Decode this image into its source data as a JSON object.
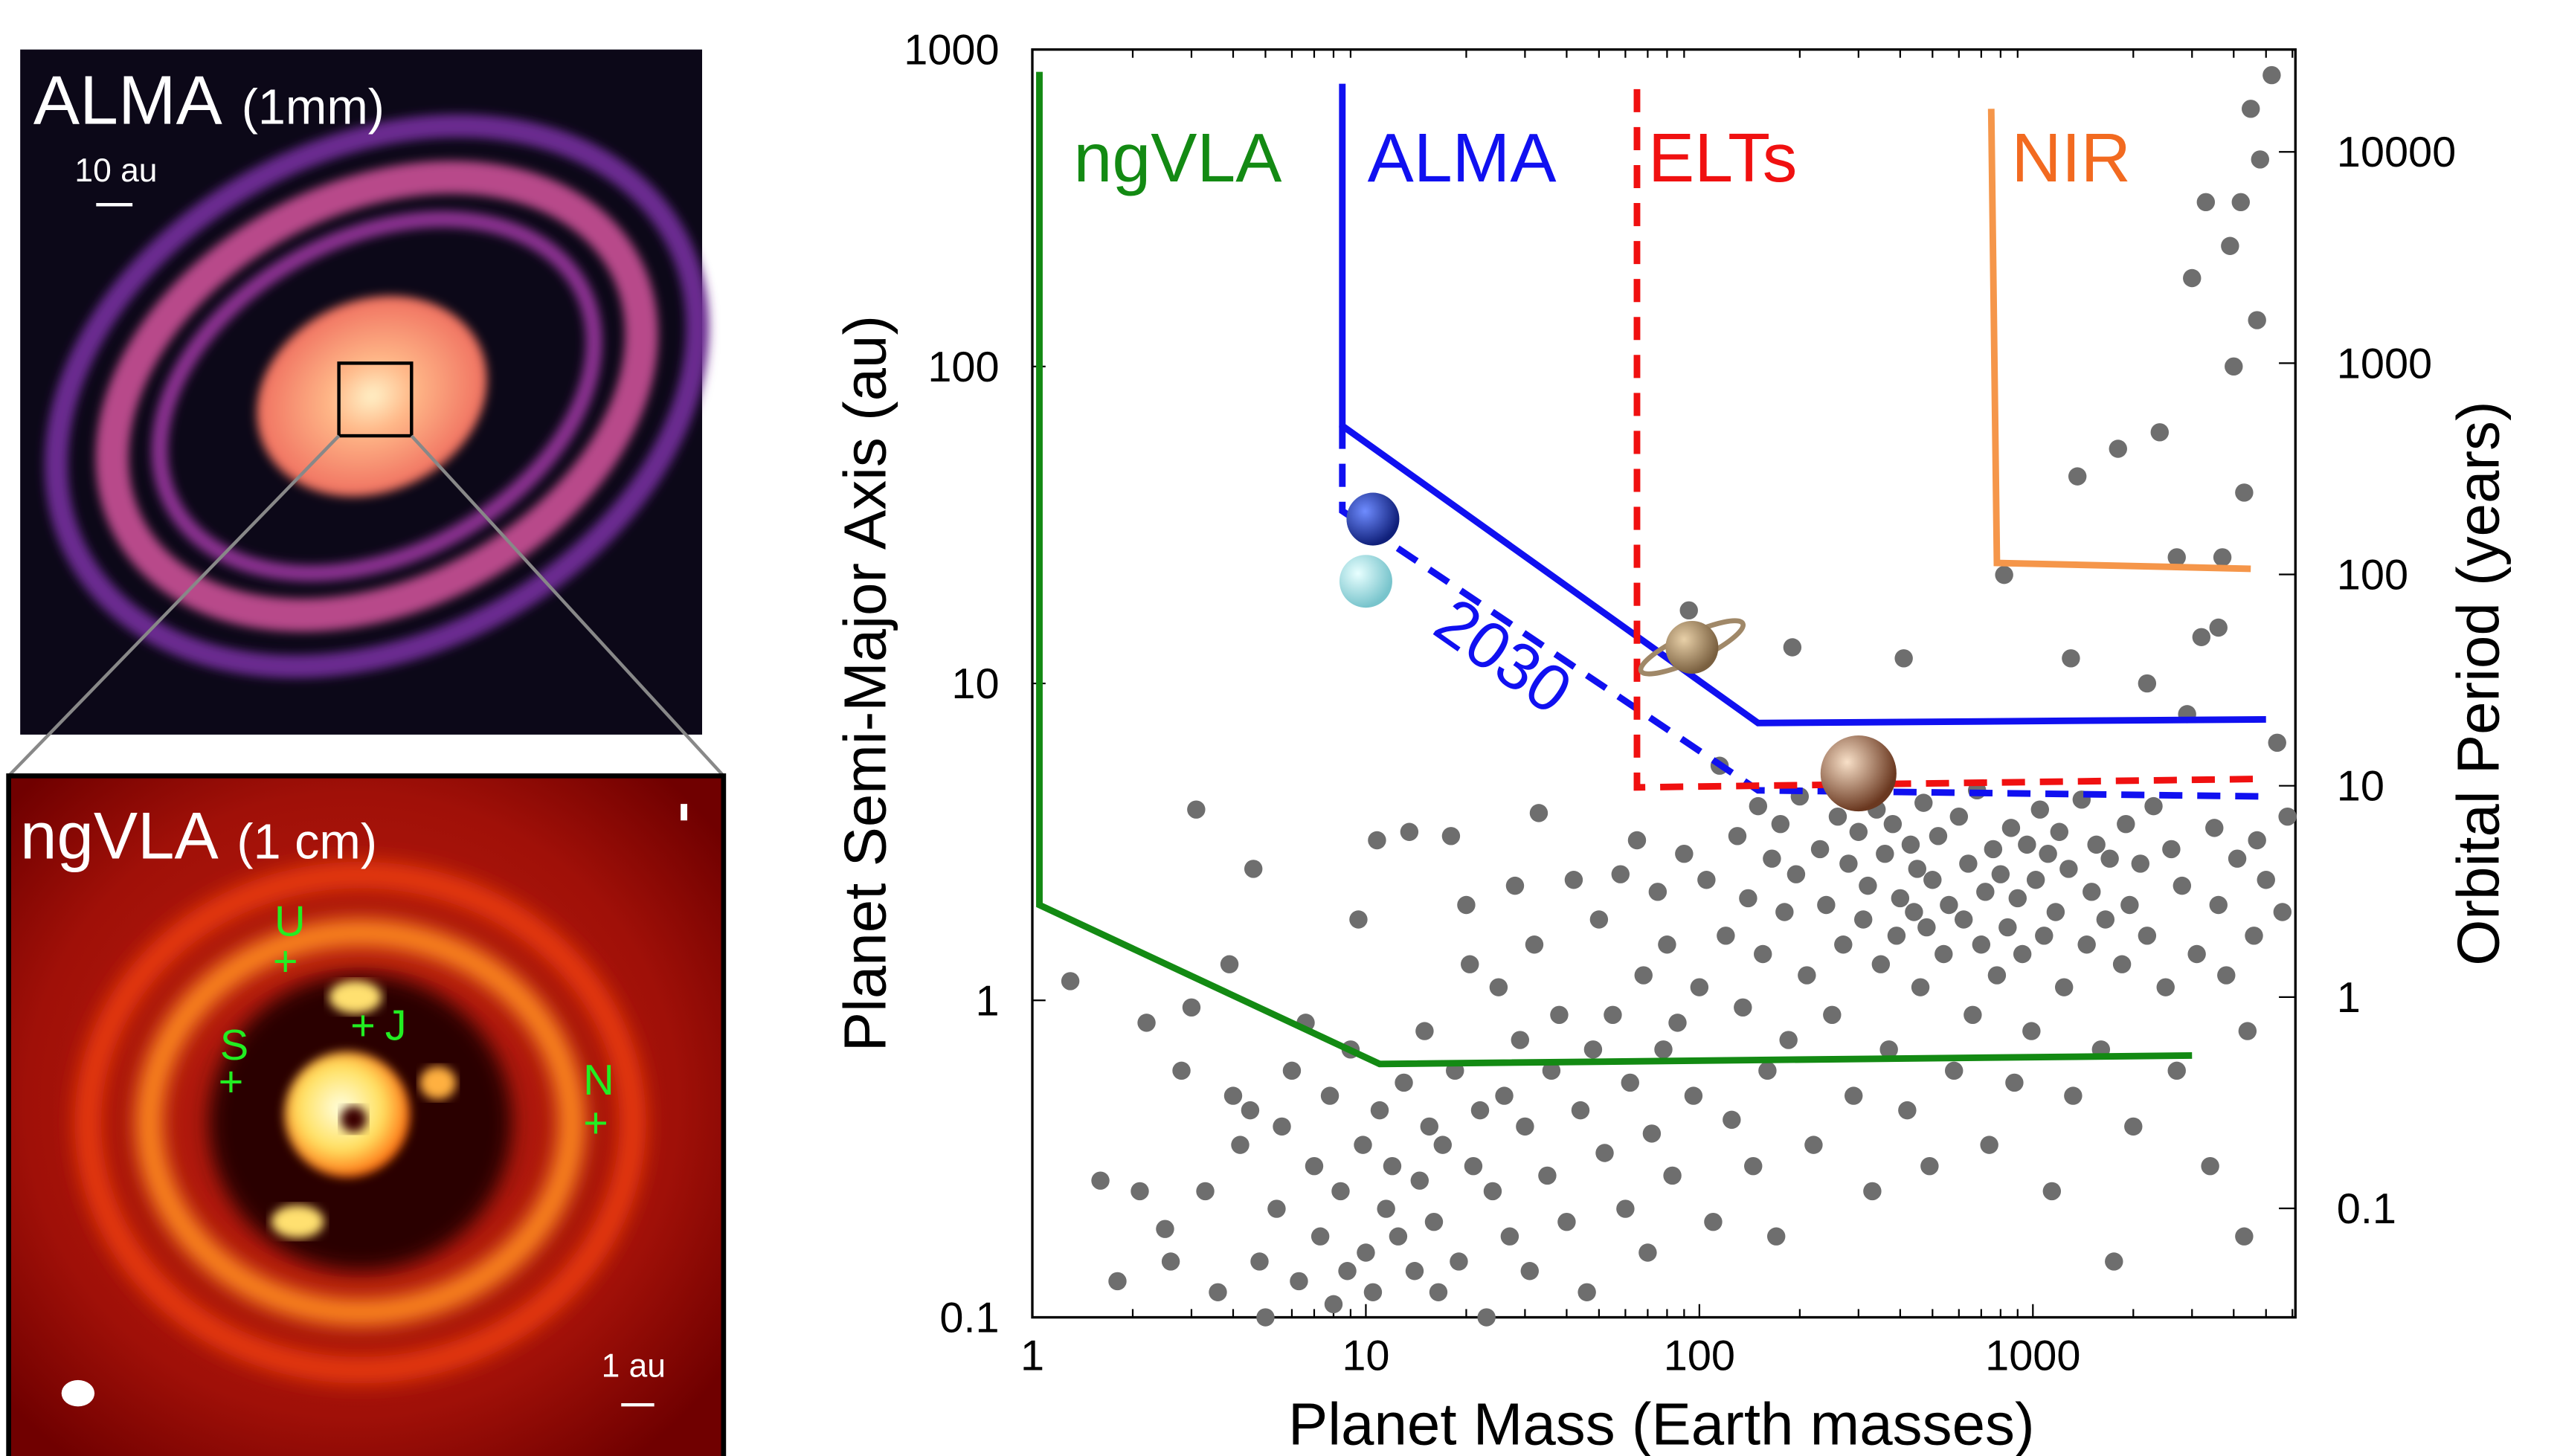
{
  "panels": {
    "alma": {
      "title": "ALMA",
      "subtitle": "(1mm)",
      "scale_label": "10 au"
    },
    "ngvla": {
      "title": "ngVLA",
      "subtitle": "(1 cm)",
      "scale_label": "1 au",
      "planet_markers": [
        {
          "label": "U"
        },
        {
          "label": "S"
        },
        {
          "label": "J"
        },
        {
          "label": "N"
        }
      ]
    }
  },
  "chart_data": {
    "type": "scatter",
    "xlabel": "Planet Mass (Earth masses)",
    "ylabel": "Planet Semi-Major Axis (au)",
    "y2label": "Orbital Period (years)",
    "xscale": "log",
    "yscale": "log",
    "xlim": [
      1,
      6000
    ],
    "ylim": [
      0.1,
      1000
    ],
    "xticks": [
      "1",
      "10",
      "100",
      "1000"
    ],
    "xtick_values": [
      1,
      10,
      100,
      1000
    ],
    "yticks": [
      "0.1",
      "1",
      "10",
      "100",
      "1000"
    ],
    "ytick_values": [
      0.1,
      1,
      10,
      100,
      1000
    ],
    "y2ticks": [
      "0.1",
      "1",
      "10",
      "100",
      "1000",
      "10000"
    ],
    "y2tick_values": [
      0.1,
      1,
      10,
      100,
      1000,
      10000
    ],
    "colors": {
      "ngVLA": "#138a13",
      "ALMA": "#1010f0",
      "ELTs": "#f01010",
      "NIR": "#f5964a",
      "points": "#6e6e6e"
    },
    "limits": [
      {
        "name": "ngVLA",
        "style": "solid",
        "points": [
          [
            1.05,
            850
          ],
          [
            1.05,
            2
          ],
          [
            11,
            0.63
          ],
          [
            3000,
            0.67
          ]
        ]
      },
      {
        "name": "ALMA",
        "style": "solid",
        "points": [
          [
            8.5,
            780
          ],
          [
            8.5,
            65
          ],
          [
            150,
            7.5
          ],
          [
            5000,
            7.7
          ]
        ]
      },
      {
        "name": "ALMA 2030",
        "label": "2030",
        "style": "dashed",
        "points": [
          [
            8.5,
            65
          ],
          [
            8.5,
            35
          ],
          [
            150,
            4.6
          ],
          [
            5000,
            4.4
          ]
        ]
      },
      {
        "name": "ELTs",
        "style": "dashed",
        "points": [
          [
            65,
            750
          ],
          [
            65,
            4.7
          ],
          [
            5000,
            5
          ]
        ]
      },
      {
        "name": "NIR",
        "style": "solid",
        "points": [
          [
            750,
            650
          ],
          [
            780,
            24
          ],
          [
            4500,
            23
          ]
        ]
      }
    ],
    "solar_system": [
      {
        "name": "Neptune",
        "mass": 10.5,
        "a": 33,
        "color": "#2a4fd8"
      },
      {
        "name": "Uranus",
        "mass": 10,
        "a": 21,
        "color": "#a8e4ea"
      },
      {
        "name": "Saturn",
        "mass": 95,
        "a": 13,
        "color": "#c8a878"
      },
      {
        "name": "Jupiter",
        "mass": 300,
        "a": 5.2,
        "color": "#c88a60"
      }
    ],
    "exoplanets": [
      [
        1.3,
        1.15
      ],
      [
        1.6,
        0.27
      ],
      [
        1.8,
        0.13
      ],
      [
        2.1,
        0.25
      ],
      [
        2.2,
        0.85
      ],
      [
        2.5,
        0.19
      ],
      [
        2.6,
        0.15
      ],
      [
        2.8,
        0.6
      ],
      [
        3,
        0.95
      ],
      [
        3.1,
        4
      ],
      [
        3.3,
        0.25
      ],
      [
        3.6,
        0.12
      ],
      [
        3.9,
        1.3
      ],
      [
        4,
        0.5
      ],
      [
        4.2,
        0.35
      ],
      [
        4.5,
        0.45
      ],
      [
        4.6,
        2.6
      ],
      [
        4.8,
        0.15
      ],
      [
        5,
        0.1
      ],
      [
        5.4,
        0.22
      ],
      [
        5.6,
        0.4
      ],
      [
        6,
        0.6
      ],
      [
        6.3,
        0.13
      ],
      [
        6.6,
        0.85
      ],
      [
        7,
        0.3
      ],
      [
        7.3,
        0.18
      ],
      [
        7.8,
        0.5
      ],
      [
        8,
        0.11
      ],
      [
        8.4,
        0.25
      ],
      [
        8.8,
        0.14
      ],
      [
        9,
        0.7
      ],
      [
        9.5,
        1.8
      ],
      [
        9.8,
        0.35
      ],
      [
        10,
        0.16
      ],
      [
        10.5,
        0.12
      ],
      [
        10.8,
        3.2
      ],
      [
        11,
        0.45
      ],
      [
        11.5,
        0.22
      ],
      [
        12,
        0.3
      ],
      [
        12.5,
        0.18
      ],
      [
        13,
        0.55
      ],
      [
        13.5,
        3.4
      ],
      [
        14,
        0.14
      ],
      [
        14.5,
        0.27
      ],
      [
        15,
        0.8
      ],
      [
        15.5,
        0.4
      ],
      [
        16,
        0.2
      ],
      [
        16.5,
        0.12
      ],
      [
        17,
        0.35
      ],
      [
        18,
        3.3
      ],
      [
        18.5,
        0.6
      ],
      [
        19,
        0.15
      ],
      [
        20,
        2
      ],
      [
        20.5,
        1.3
      ],
      [
        21,
        0.3
      ],
      [
        22,
        0.45
      ],
      [
        23,
        0.1
      ],
      [
        24,
        0.25
      ],
      [
        25,
        1.1
      ],
      [
        26,
        0.5
      ],
      [
        27,
        0.18
      ],
      [
        28,
        2.3
      ],
      [
        29,
        0.75
      ],
      [
        30,
        0.4
      ],
      [
        31,
        0.14
      ],
      [
        32,
        1.5
      ],
      [
        33,
        3.9
      ],
      [
        35,
        0.28
      ],
      [
        36,
        0.6
      ],
      [
        38,
        0.9
      ],
      [
        40,
        0.2
      ],
      [
        42,
        2.4
      ],
      [
        44,
        0.45
      ],
      [
        46,
        0.12
      ],
      [
        48,
        0.7
      ],
      [
        50,
        1.8
      ],
      [
        52,
        0.33
      ],
      [
        55,
        0.9
      ],
      [
        58,
        2.5
      ],
      [
        60,
        0.22
      ],
      [
        62,
        0.55
      ],
      [
        65,
        3.2
      ],
      [
        68,
        1.2
      ],
      [
        70,
        0.16
      ],
      [
        72,
        0.38
      ],
      [
        75,
        2.2
      ],
      [
        78,
        0.7
      ],
      [
        80,
        1.5
      ],
      [
        83,
        0.28
      ],
      [
        86,
        0.85
      ],
      [
        90,
        2.9
      ],
      [
        93,
        17
      ],
      [
        96,
        0.5
      ],
      [
        100,
        1.1
      ],
      [
        105,
        2.4
      ],
      [
        110,
        0.2
      ],
      [
        115,
        5.5
      ],
      [
        120,
        1.6
      ],
      [
        125,
        0.42
      ],
      [
        130,
        3.3
      ],
      [
        135,
        0.95
      ],
      [
        140,
        2.1
      ],
      [
        145,
        0.3
      ],
      [
        150,
        4.1
      ],
      [
        155,
        1.4
      ],
      [
        160,
        0.6
      ],
      [
        165,
        2.8
      ],
      [
        170,
        0.18
      ],
      [
        175,
        3.6
      ],
      [
        180,
        1.9
      ],
      [
        185,
        0.75
      ],
      [
        190,
        13
      ],
      [
        195,
        2.5
      ],
      [
        200,
        4.4
      ],
      [
        210,
        1.2
      ],
      [
        220,
        0.35
      ],
      [
        230,
        3
      ],
      [
        240,
        2
      ],
      [
        250,
        0.9
      ],
      [
        260,
        3.8
      ],
      [
        270,
        1.5
      ],
      [
        280,
        2.7
      ],
      [
        290,
        0.5
      ],
      [
        300,
        3.4
      ],
      [
        310,
        1.8
      ],
      [
        320,
        2.3
      ],
      [
        330,
        0.25
      ],
      [
        340,
        4
      ],
      [
        350,
        1.3
      ],
      [
        360,
        2.9
      ],
      [
        370,
        0.7
      ],
      [
        380,
        3.6
      ],
      [
        390,
        1.6
      ],
      [
        400,
        2.1
      ],
      [
        410,
        12
      ],
      [
        420,
        0.45
      ],
      [
        430,
        3.1
      ],
      [
        440,
        1.9
      ],
      [
        450,
        2.6
      ],
      [
        460,
        1.1
      ],
      [
        470,
        4.2
      ],
      [
        480,
        1.7
      ],
      [
        490,
        0.3
      ],
      [
        500,
        2.4
      ],
      [
        520,
        3.3
      ],
      [
        540,
        1.4
      ],
      [
        560,
        2
      ],
      [
        580,
        0.6
      ],
      [
        600,
        3.8
      ],
      [
        620,
        1.8
      ],
      [
        640,
        2.7
      ],
      [
        660,
        0.9
      ],
      [
        680,
        4.6
      ],
      [
        700,
        1.5
      ],
      [
        720,
        2.2
      ],
      [
        740,
        0.35
      ],
      [
        760,
        3
      ],
      [
        780,
        1.2
      ],
      [
        800,
        2.5
      ],
      [
        820,
        22
      ],
      [
        840,
        1.7
      ],
      [
        860,
        3.5
      ],
      [
        880,
        0.55
      ],
      [
        900,
        2.1
      ],
      [
        930,
        1.4
      ],
      [
        960,
        3.1
      ],
      [
        990,
        0.8
      ],
      [
        1020,
        2.4
      ],
      [
        1050,
        4
      ],
      [
        1080,
        1.6
      ],
      [
        1110,
        2.9
      ],
      [
        1140,
        0.25
      ],
      [
        1170,
        1.9
      ],
      [
        1200,
        3.4
      ],
      [
        1240,
        1.1
      ],
      [
        1280,
        2.6
      ],
      [
        1320,
        0.5
      ],
      [
        1360,
        45
      ],
      [
        1400,
        4.3
      ],
      [
        1450,
        1.5
      ],
      [
        1500,
        2.2
      ],
      [
        1550,
        3.1
      ],
      [
        1600,
        0.7
      ],
      [
        1650,
        1.8
      ],
      [
        1700,
        2.8
      ],
      [
        1750,
        0.15
      ],
      [
        1800,
        55
      ],
      [
        1850,
        1.3
      ],
      [
        1900,
        3.6
      ],
      [
        1950,
        2
      ],
      [
        2000,
        0.4
      ],
      [
        2100,
        2.7
      ],
      [
        2200,
        1.6
      ],
      [
        2300,
        4.1
      ],
      [
        2400,
        62
      ],
      [
        2500,
        1.1
      ],
      [
        2600,
        3
      ],
      [
        2700,
        0.6
      ],
      [
        2800,
        2.3
      ],
      [
        2900,
        8
      ],
      [
        3000,
        190
      ],
      [
        3100,
        1.4
      ],
      [
        3200,
        14
      ],
      [
        3300,
        330
      ],
      [
        3400,
        0.3
      ],
      [
        3500,
        3.5
      ],
      [
        3600,
        2
      ],
      [
        3700,
        25
      ],
      [
        3800,
        1.2
      ],
      [
        3900,
        240
      ],
      [
        4000,
        100
      ],
      [
        4100,
        2.8
      ],
      [
        4200,
        330
      ],
      [
        4300,
        0.18
      ],
      [
        4400,
        0.8
      ],
      [
        4500,
        650
      ],
      [
        4600,
        1.6
      ],
      [
        4700,
        3.2
      ],
      [
        4800,
        450
      ],
      [
        5000,
        2.4
      ],
      [
        5200,
        830
      ],
      [
        5400,
        6.5
      ],
      [
        5600,
        1.9
      ],
      [
        5800,
        3.8
      ],
      [
        1300,
        12
      ],
      [
        2200,
        10
      ],
      [
        3600,
        15
      ],
      [
        4300,
        40
      ],
      [
        4700,
        140
      ],
      [
        2700,
        25
      ]
    ]
  }
}
